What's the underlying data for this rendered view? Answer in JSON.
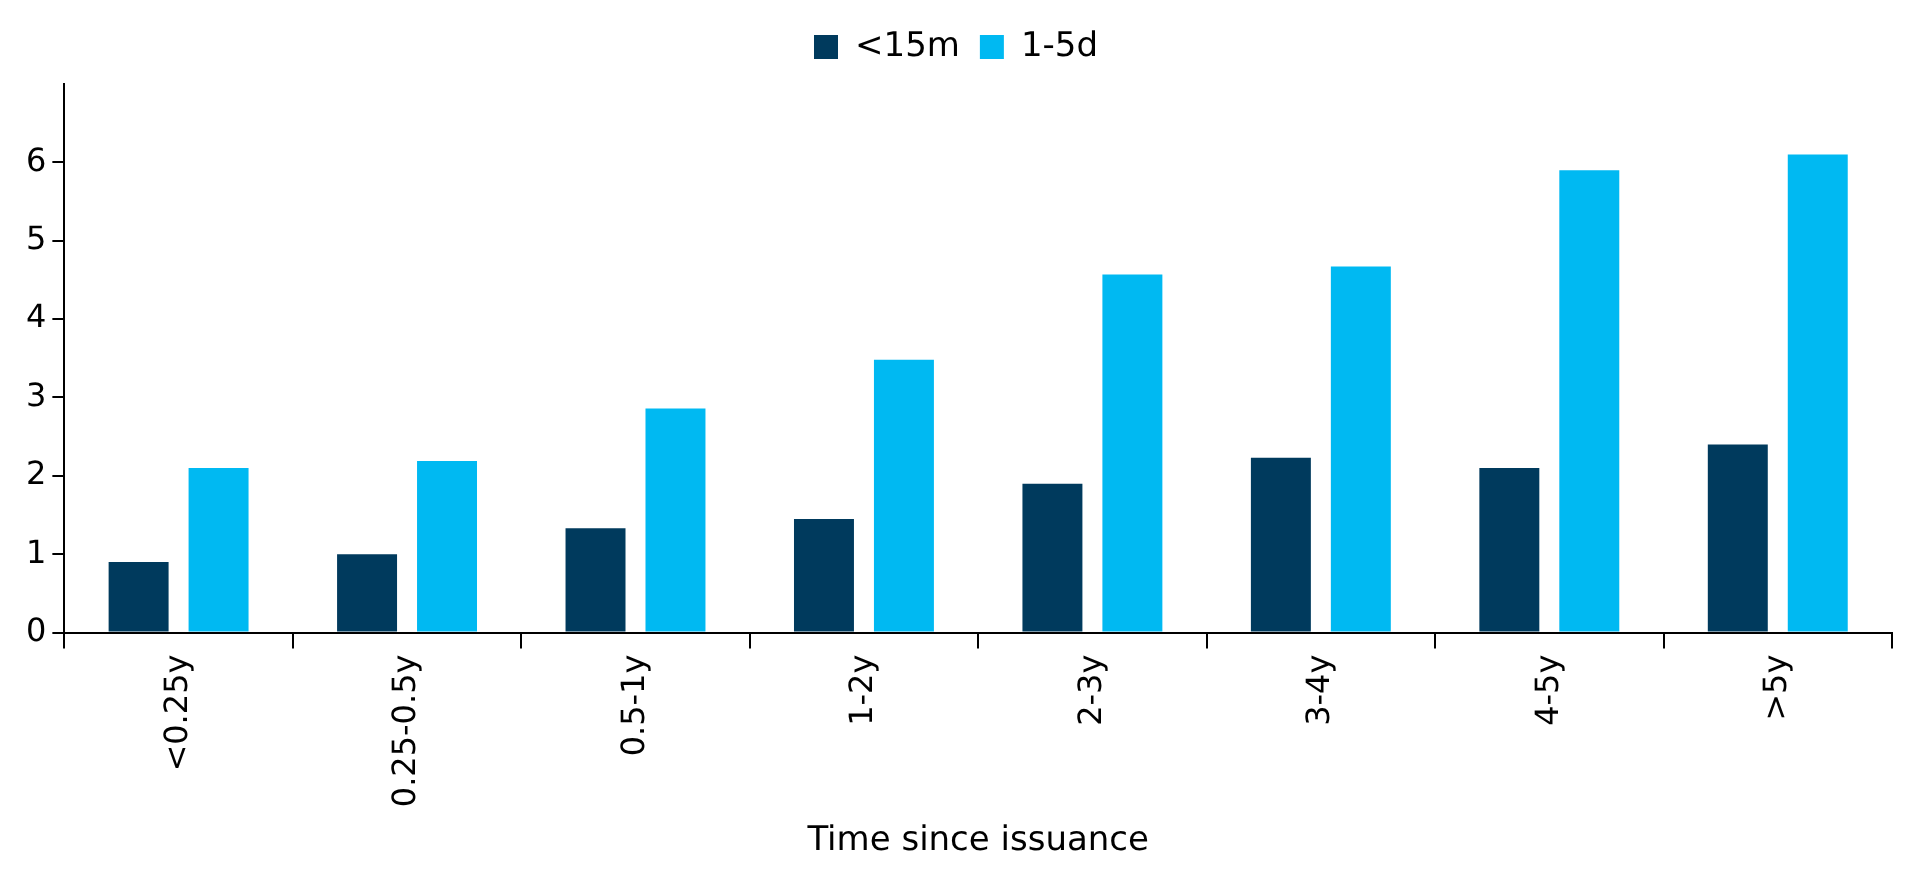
{
  "chart_data": {
    "type": "bar",
    "xlabel": "Time since issuance",
    "categories": [
      "<0.25y",
      "0.25-0.5y",
      "0.5-1y",
      "1-2y",
      "2-3y",
      "3-4y",
      "4-5y",
      ">5y"
    ],
    "series": [
      {
        "name": "<15m",
        "color": "#003a5d",
        "values": [
          0.9,
          1.0,
          1.33,
          1.45,
          1.9,
          2.23,
          2.1,
          2.4
        ]
      },
      {
        "name": "1-5d",
        "color": "#00b9f2",
        "values": [
          2.1,
          2.19,
          2.86,
          3.48,
          4.57,
          4.67,
          5.9,
          6.1
        ]
      }
    ],
    "ylim": [
      0,
      7
    ],
    "yticks": [
      0,
      1,
      2,
      3,
      4,
      5,
      6
    ],
    "grid": false,
    "legend": "top"
  }
}
